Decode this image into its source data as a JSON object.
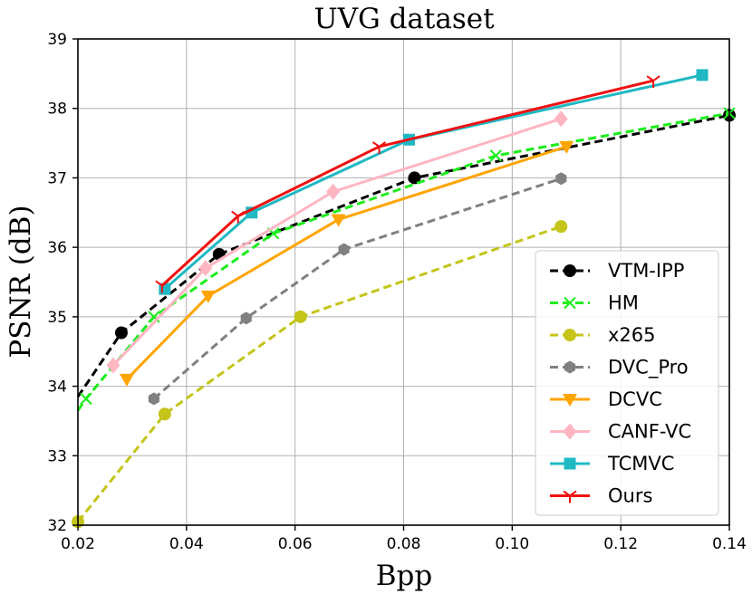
{
  "chart_data": {
    "type": "line",
    "title": "UVG dataset",
    "xlabel": "Bpp",
    "ylabel": "PSNR (dB)",
    "xlim": [
      0.02,
      0.14
    ],
    "ylim": [
      32,
      39
    ],
    "xticks": [
      0.02,
      0.04,
      0.06,
      0.08,
      0.1,
      0.12,
      0.14
    ],
    "xtick_labels": [
      "0.02",
      "0.04",
      "0.06",
      "0.08",
      "0.10",
      "0.12",
      "0.14"
    ],
    "yticks": [
      32,
      33,
      34,
      35,
      36,
      37,
      38,
      39
    ],
    "ytick_labels": [
      "32",
      "33",
      "34",
      "35",
      "36",
      "37",
      "38",
      "39"
    ],
    "grid": true,
    "legend_position": "bottom-right",
    "series": [
      {
        "name": "VTM-IPP",
        "color": "#000000",
        "dash": "dashed",
        "marker": "circle",
        "marker_indices": [
          1,
          2,
          3,
          4
        ],
        "x": [
          0.02,
          0.028,
          0.046,
          0.082,
          0.14
        ],
        "y": [
          33.85,
          34.77,
          35.9,
          37.0,
          37.9
        ]
      },
      {
        "name": "HM",
        "color": "#1aee1a",
        "dash": "dashed",
        "marker": "x",
        "marker_indices": [
          1,
          2,
          3,
          4,
          5
        ],
        "x": [
          0.02,
          0.0215,
          0.034,
          0.056,
          0.097,
          0.14
        ],
        "y": [
          33.65,
          33.82,
          35.0,
          36.2,
          37.32,
          37.93
        ]
      },
      {
        "name": "x265",
        "color": "#c4c41a",
        "dash": "dashed",
        "marker": "circle",
        "marker_indices": [
          0,
          1,
          2,
          3
        ],
        "x": [
          0.02,
          0.036,
          0.061,
          0.109
        ],
        "y": [
          32.05,
          33.6,
          35.0,
          36.3
        ]
      },
      {
        "name": "DVC_Pro",
        "color": "#808080",
        "dash": "dashed",
        "marker": "hexagon",
        "marker_indices": [
          0,
          1,
          2,
          3
        ],
        "x": [
          0.034,
          0.051,
          0.069,
          0.109
        ],
        "y": [
          33.82,
          34.98,
          35.97,
          36.99
        ]
      },
      {
        "name": "DCVC",
        "color": "#ffa500",
        "dash": "solid",
        "marker": "triangle-down",
        "marker_indices": [
          0,
          1,
          2,
          3
        ],
        "x": [
          0.029,
          0.044,
          0.068,
          0.11
        ],
        "y": [
          34.1,
          35.3,
          36.4,
          37.45
        ]
      },
      {
        "name": "CANF-VC",
        "color": "#ffb6c1",
        "dash": "solid",
        "marker": "diamond",
        "marker_indices": [
          0,
          1,
          2,
          3
        ],
        "x": [
          0.0265,
          0.0435,
          0.067,
          0.109
        ],
        "y": [
          34.3,
          35.7,
          36.8,
          37.85
        ]
      },
      {
        "name": "TCMVC",
        "color": "#1fb8c3",
        "dash": "solid",
        "marker": "square",
        "marker_indices": [
          0,
          1,
          2,
          3
        ],
        "x": [
          0.036,
          0.052,
          0.081,
          0.135
        ],
        "y": [
          35.4,
          36.5,
          37.55,
          38.48
        ]
      },
      {
        "name": "Ours",
        "color": "#ee1111",
        "dash": "solid",
        "marker": "tri-down",
        "marker_indices": [
          0,
          1,
          2,
          3
        ],
        "x": [
          0.0355,
          0.0495,
          0.0755,
          0.126
        ],
        "y": [
          35.45,
          36.45,
          37.45,
          38.4
        ]
      }
    ]
  }
}
